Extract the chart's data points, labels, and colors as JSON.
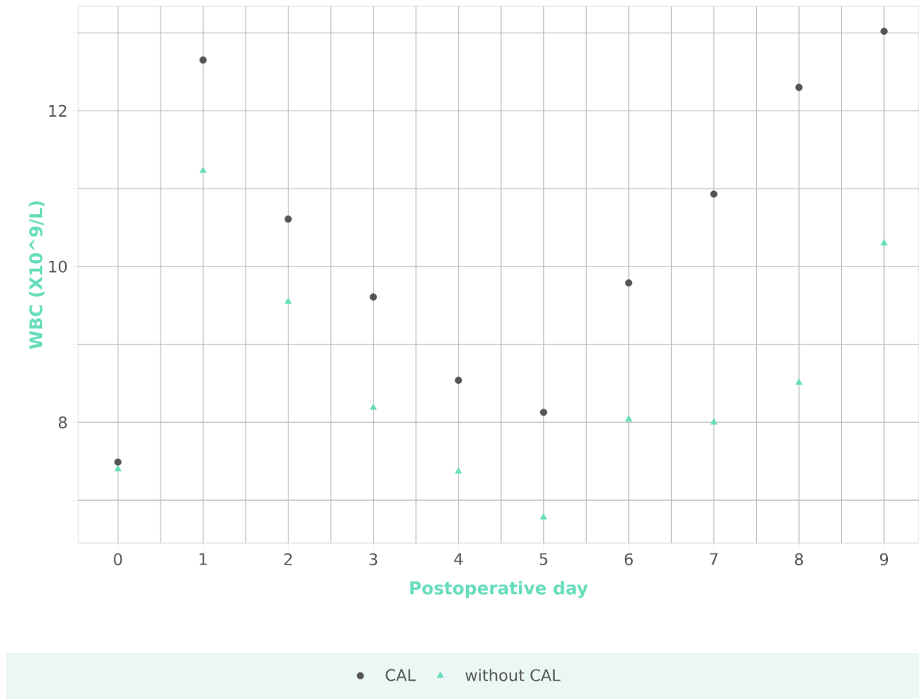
{
  "chart_data": {
    "type": "scatter",
    "xlabel": "Postoperative day",
    "ylabel": "WBC (X10^9/L)",
    "categories": [
      "0",
      "1",
      "2",
      "3",
      "4",
      "5",
      "6",
      "7",
      "8",
      "9"
    ],
    "series": [
      {
        "name": "CAL",
        "color": "#555555",
        "marker": "circle",
        "values": [
          7.49,
          12.65,
          10.61,
          9.61,
          8.54,
          8.13,
          9.79,
          10.93,
          12.3,
          13.02
        ]
      },
      {
        "name": "without CAL",
        "color": "#66ddbb",
        "marker": "triangle",
        "values": [
          7.4,
          11.23,
          9.55,
          8.19,
          7.37,
          6.78,
          8.04,
          8.0,
          8.51,
          10.3
        ]
      }
    ],
    "ylim": [
      6.45,
      13.34
    ],
    "yticks": [
      {
        "value": 7,
        "label": null
      },
      8,
      {
        "value": 9,
        "label": null
      },
      10,
      {
        "value": 11,
        "label": null
      },
      12,
      {
        "value": 13,
        "label": null
      }
    ],
    "grid": true,
    "legend": "bottom"
  }
}
